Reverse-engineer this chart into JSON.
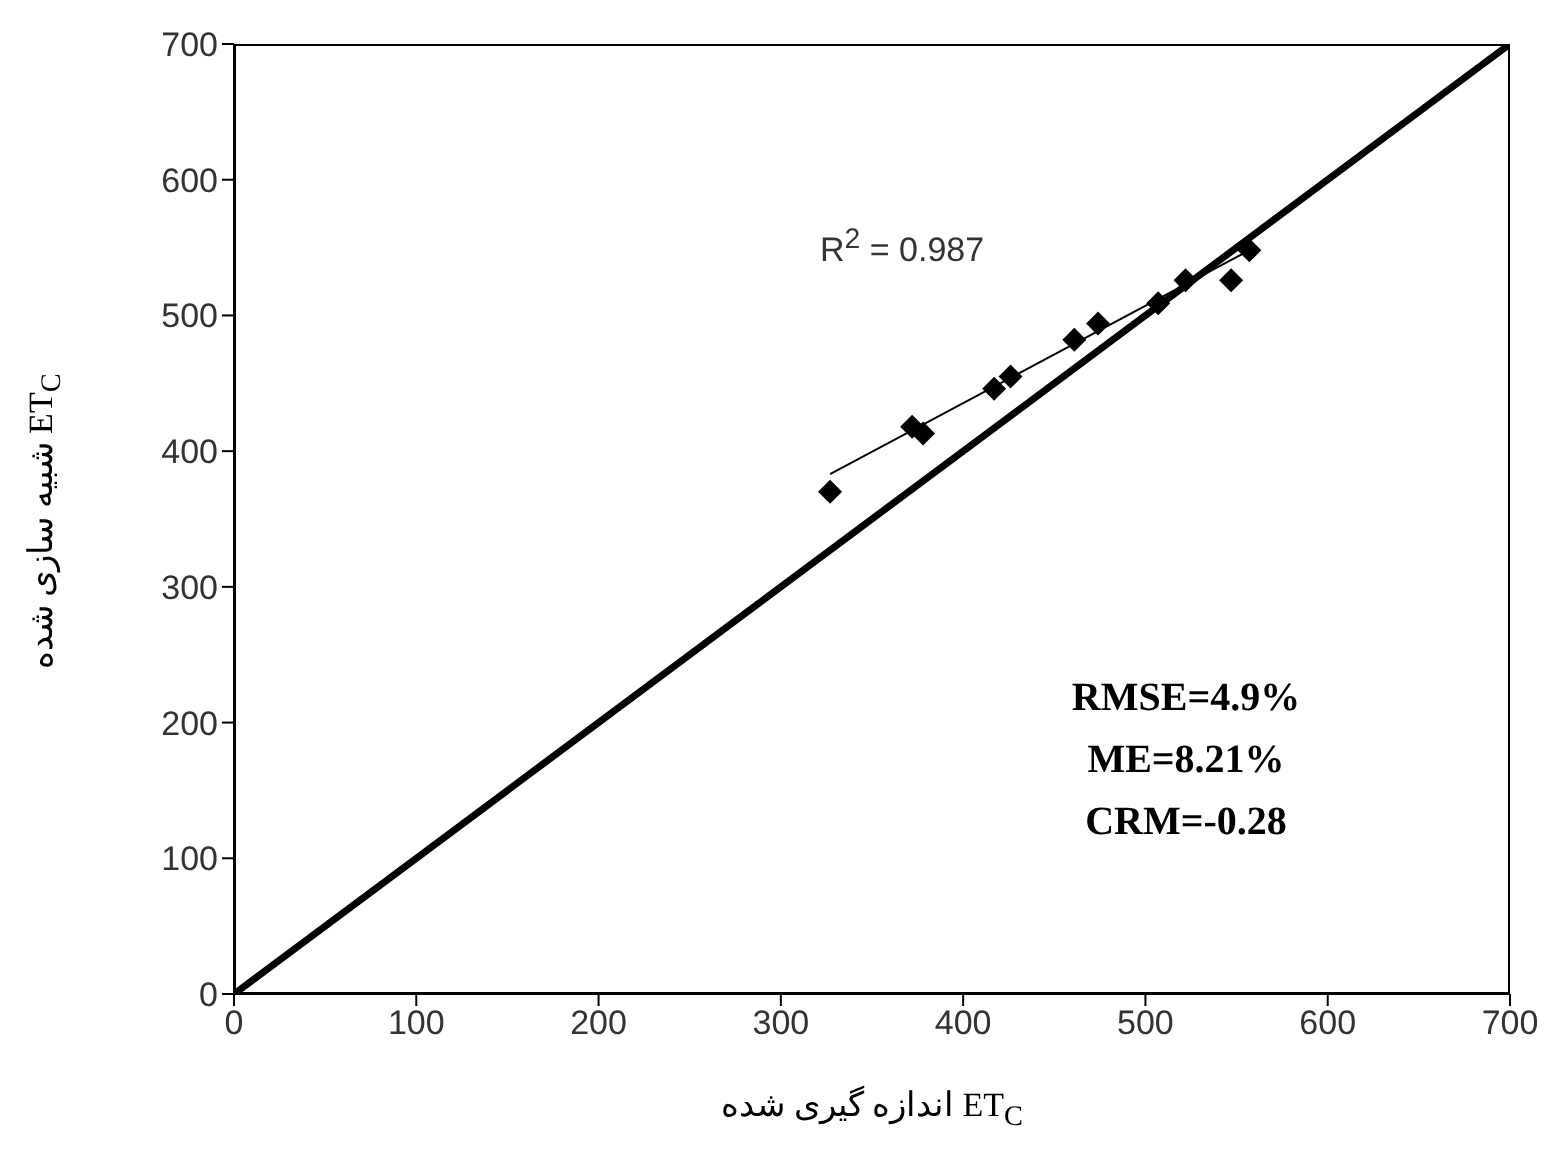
{
  "chart_data": {
    "type": "scatter",
    "xlabel": "ET$_{C}$ اندازه گیری شده",
    "ylabel": "ET$_{C}$ شبیه سازی شده",
    "xlim": [
      0,
      700
    ],
    "ylim": [
      0,
      700
    ],
    "xticks": [
      0,
      100,
      200,
      300,
      400,
      500,
      600,
      700
    ],
    "yticks": [
      0,
      100,
      200,
      300,
      400,
      500,
      600,
      700
    ],
    "grid": false,
    "series": [
      {
        "marker": "diamond",
        "color": "#000000",
        "x": [
          327,
          372,
          378,
          417,
          426,
          461,
          474,
          507,
          522,
          547,
          557
        ],
        "values": [
          370,
          418,
          413,
          446,
          455,
          482,
          494,
          509,
          526,
          526,
          548
        ]
      },
      {
        "type": "line",
        "marker": "none",
        "color": "#000000",
        "x": [
          327,
          557
        ],
        "values": [
          383,
          548
        ]
      },
      {
        "type": "line",
        "marker": "none",
        "color": "#000000",
        "x": [
          0,
          700
        ],
        "values": [
          0,
          700
        ]
      }
    ],
    "annotations": [
      "R$^{2}$ = 0.987",
      "RMSE=4.9%",
      "ME=8.21%",
      "CRM=-0.28"
    ]
  }
}
